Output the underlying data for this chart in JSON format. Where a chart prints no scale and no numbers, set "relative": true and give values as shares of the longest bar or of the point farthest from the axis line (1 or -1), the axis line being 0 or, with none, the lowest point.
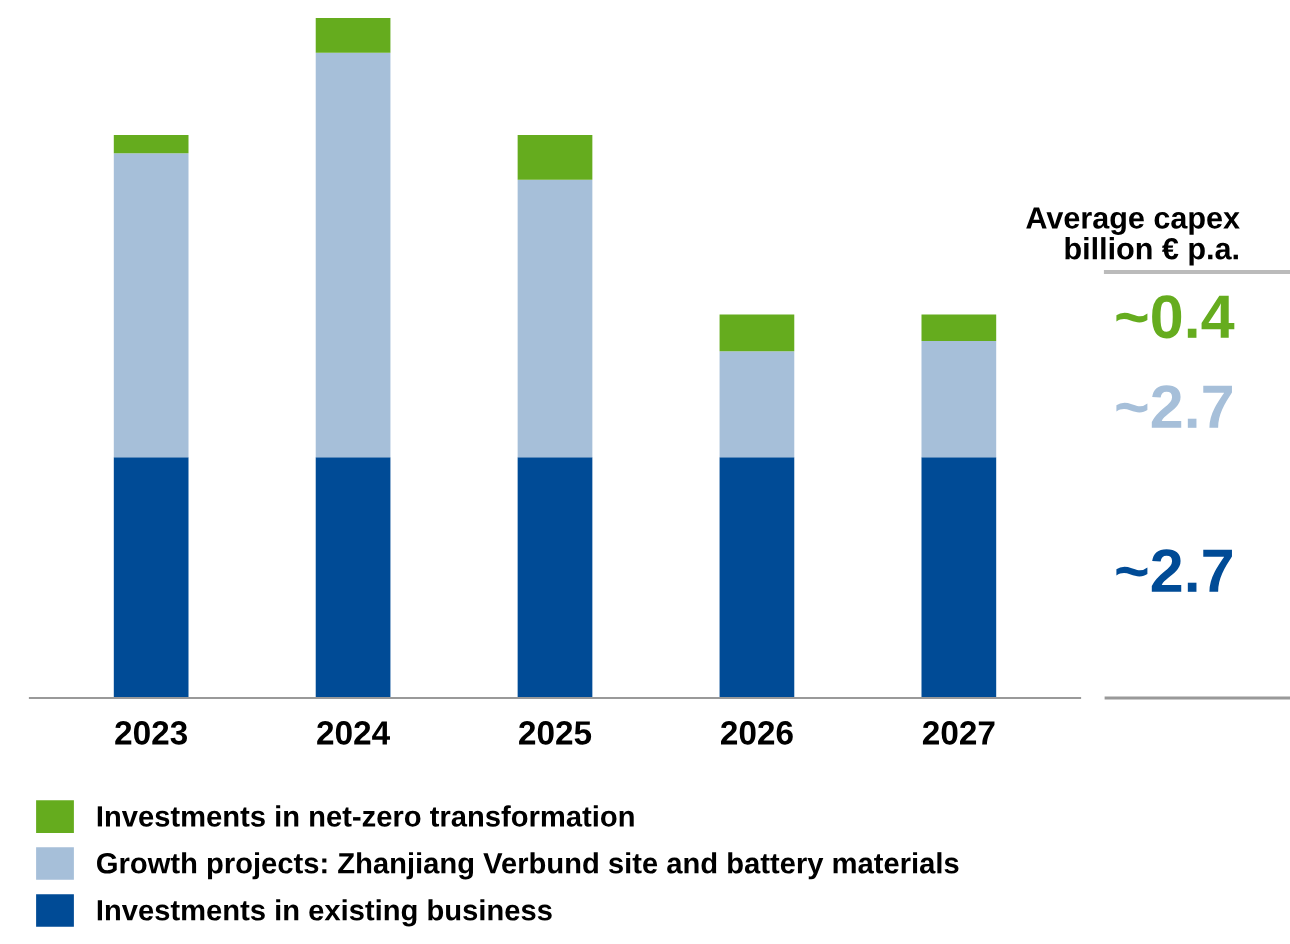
{
  "chart_data": {
    "type": "bar",
    "stacked": true,
    "relative": true,
    "legend": "bottom",
    "categories": [
      "2023",
      "2024",
      "2025",
      "2026",
      "2027"
    ],
    "series": [
      {
        "name": "Investments in existing business",
        "color": "#004b96",
        "values": [
          0.354,
          0.354,
          0.354,
          0.354,
          0.354
        ]
      },
      {
        "name": "Growth projects: Zhanjiang Verbund site and battery materials",
        "color": "#a6bfd9",
        "values": [
          0.447,
          0.595,
          0.408,
          0.156,
          0.171
        ]
      },
      {
        "name": "Investments in net-zero transformation",
        "color": "#65ac1e",
        "values": [
          0.027,
          0.051,
          0.066,
          0.054,
          0.039
        ]
      }
    ],
    "annotations": [
      "Average capex\nbillion € p.a.",
      "~0.4",
      "~2.7",
      "~2.7"
    ]
  }
}
